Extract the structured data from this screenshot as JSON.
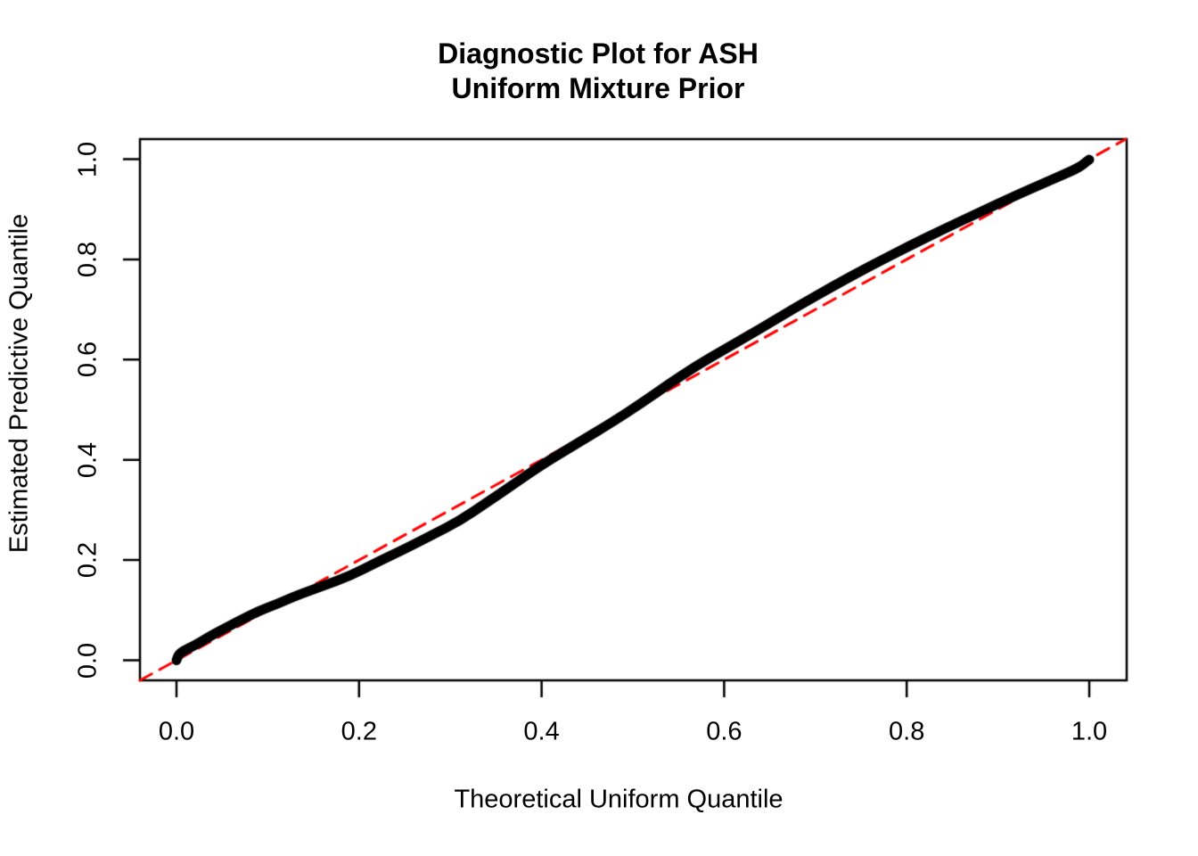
{
  "header": {
    "title_line1": "Diagnostic Plot for ASH",
    "title_line2": "Uniform Mixture Prior"
  },
  "axes": {
    "xlabel": "Theoretical Uniform Quantile",
    "ylabel": "Estimated Predictive Quantile"
  },
  "colors": {
    "points": "#000000",
    "reference_line": "#FF0000",
    "background": "#FFFFFF",
    "text": "#000000"
  },
  "chart_data": {
    "type": "scatter",
    "title": "Diagnostic Plot for ASH\nUniform Mixture Prior",
    "xlabel": "Theoretical Uniform Quantile",
    "ylabel": "Estimated Predictive Quantile",
    "xlim": [
      -0.04,
      1.04
    ],
    "ylim": [
      -0.04,
      1.04
    ],
    "grid": false,
    "legend": "none",
    "x_ticks": [
      0.0,
      0.2,
      0.4,
      0.6,
      0.8,
      1.0
    ],
    "x_tick_labels": [
      "0.0",
      "0.2",
      "0.4",
      "0.6",
      "0.8",
      "1.0"
    ],
    "y_ticks": [
      0.0,
      0.2,
      0.4,
      0.6,
      0.8,
      1.0
    ],
    "y_tick_labels": [
      "0.0",
      "0.2",
      "0.4",
      "0.6",
      "0.8",
      "1.0"
    ],
    "series": [
      {
        "name": "identity-reference-line",
        "type": "dashed-line",
        "color": "#FF0000",
        "points": [
          [
            -0.04,
            -0.04
          ],
          [
            1.04,
            1.04
          ]
        ]
      },
      {
        "name": "estimated-vs-theoretical-quantiles",
        "type": "dense-points-band",
        "color": "#000000",
        "points": [
          [
            0.0,
            0.0
          ],
          [
            0.002,
            0.012
          ],
          [
            0.008,
            0.019
          ],
          [
            0.02,
            0.03
          ],
          [
            0.035,
            0.046
          ],
          [
            0.05,
            0.061
          ],
          [
            0.07,
            0.08
          ],
          [
            0.09,
            0.098
          ],
          [
            0.11,
            0.112
          ],
          [
            0.13,
            0.128
          ],
          [
            0.16,
            0.148
          ],
          [
            0.19,
            0.168
          ],
          [
            0.22,
            0.196
          ],
          [
            0.25,
            0.222
          ],
          [
            0.28,
            0.25
          ],
          [
            0.31,
            0.278
          ],
          [
            0.34,
            0.315
          ],
          [
            0.37,
            0.352
          ],
          [
            0.4,
            0.39
          ],
          [
            0.44,
            0.434
          ],
          [
            0.48,
            0.478
          ],
          [
            0.51,
            0.514
          ],
          [
            0.54,
            0.552
          ],
          [
            0.57,
            0.588
          ],
          [
            0.6,
            0.62
          ],
          [
            0.64,
            0.662
          ],
          [
            0.68,
            0.706
          ],
          [
            0.72,
            0.747
          ],
          [
            0.76,
            0.787
          ],
          [
            0.8,
            0.824
          ],
          [
            0.84,
            0.86
          ],
          [
            0.88,
            0.894
          ],
          [
            0.92,
            0.928
          ],
          [
            0.95,
            0.952
          ],
          [
            0.97,
            0.968
          ],
          [
            0.985,
            0.98
          ],
          [
            0.992,
            0.988
          ],
          [
            0.997,
            0.995
          ],
          [
            1.0,
            0.999
          ]
        ]
      }
    ]
  }
}
